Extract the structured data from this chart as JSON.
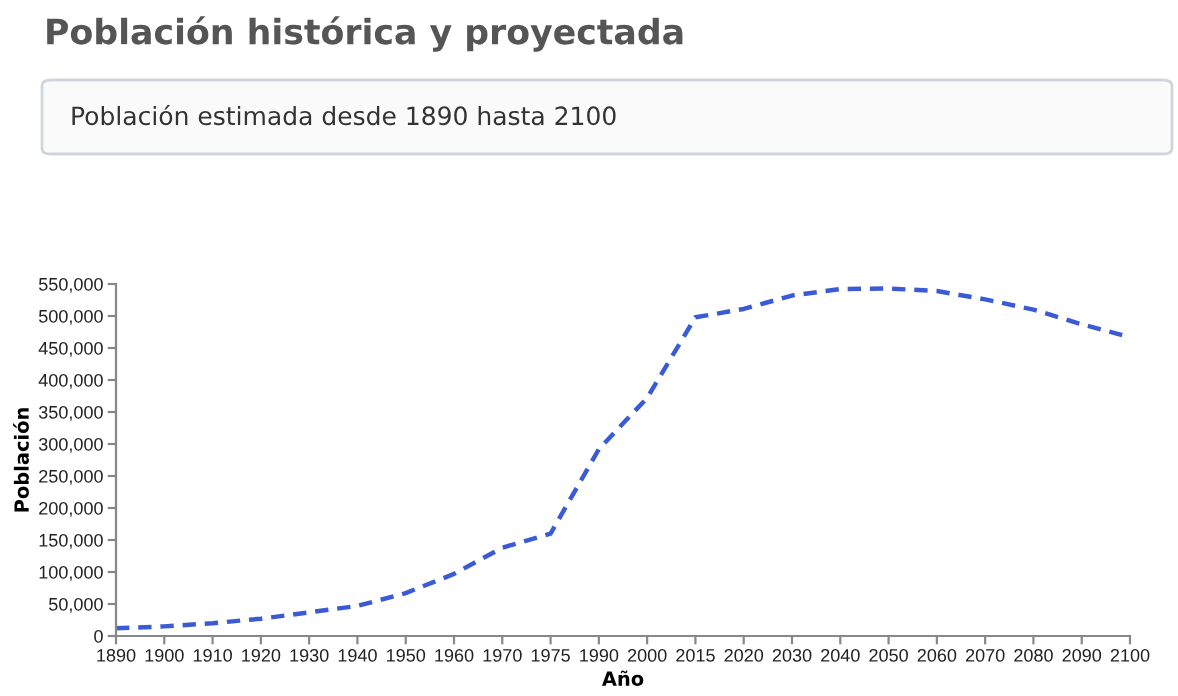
{
  "chart_data": {
    "type": "line",
    "title": "Población histórica y proyectada",
    "subtitle": "Población estimada desde 1890 hasta 2100",
    "xlabel": "Año",
    "ylabel": "Población",
    "categories": [
      "1890",
      "1900",
      "1910",
      "1920",
      "1930",
      "1940",
      "1950",
      "1960",
      "1970",
      "1975",
      "1990",
      "2000",
      "2015",
      "2020",
      "2030",
      "2040",
      "2050",
      "2060",
      "2070",
      "2080",
      "2090",
      "2100"
    ],
    "series": [
      {
        "color": "#3b5bd6",
        "values": [
          12000,
          15000,
          20000,
          27000,
          37000,
          47000,
          67000,
          97000,
          138000,
          160000,
          292000,
          372000,
          498000,
          511000,
          532000,
          542000,
          543000,
          539000,
          526000,
          510000,
          487000,
          467000
        ]
      }
    ],
    "ylim": [
      0,
      550000
    ],
    "yticks": [
      {
        "value": 0,
        "label": "0"
      },
      {
        "value": 50000,
        "label": "50,000"
      },
      {
        "value": 100000,
        "label": "100,000"
      },
      {
        "value": 150000,
        "label": "150,000"
      },
      {
        "value": 200000,
        "label": "200,000"
      },
      {
        "value": 250000,
        "label": "250,000"
      },
      {
        "value": 300000,
        "label": "300,000"
      },
      {
        "value": 350000,
        "label": "350,000"
      },
      {
        "value": 400000,
        "label": "400,000"
      },
      {
        "value": 450000,
        "label": "450,000"
      },
      {
        "value": 500000,
        "label": "500,000"
      },
      {
        "value": 550000,
        "label": "550,000"
      }
    ],
    "line_style": "dashed",
    "grid": false,
    "legend": false
  }
}
